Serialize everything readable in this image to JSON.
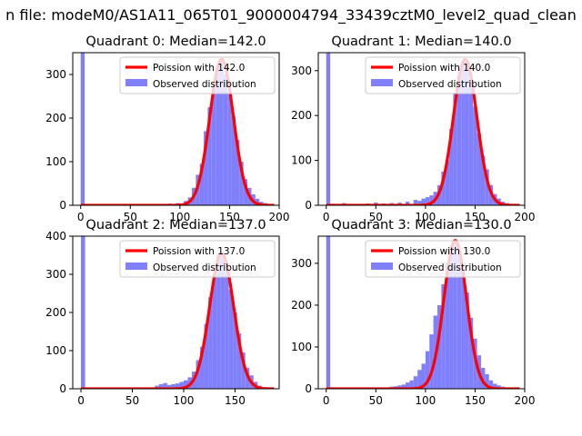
{
  "figure": {
    "suptitle": "n file: modeM0/AS1A11_065T01_9000004794_33439cztM0_level2_quad_clean"
  },
  "colors": {
    "poisson_line": "#ff0000",
    "observed_hist": "#8080ff",
    "axes": "#000000",
    "background": "#ffffff"
  },
  "chart_data": [
    {
      "type": "bar",
      "title": "Quadrant 0: Median=142.0",
      "xlim": [
        -8,
        200
      ],
      "ylim": [
        0,
        350
      ],
      "xticks": [
        0,
        50,
        100,
        150,
        200
      ],
      "yticks": [
        0,
        100,
        200,
        300
      ],
      "legend_position": "top-right",
      "bin_width": 4,
      "poisson": {
        "name": "Poission with 142.0",
        "mu": 142.0,
        "peak": 335
      },
      "observed": {
        "name": "Observed distribution",
        "bins": [
          [
            0,
            350
          ],
          [
            72,
            2
          ],
          [
            80,
            3
          ],
          [
            84,
            2
          ],
          [
            88,
            4
          ],
          [
            92,
            3
          ],
          [
            96,
            5
          ],
          [
            100,
            4
          ],
          [
            104,
            10
          ],
          [
            108,
            18
          ],
          [
            112,
            40
          ],
          [
            116,
            70
          ],
          [
            120,
            95
          ],
          [
            124,
            170
          ],
          [
            128,
            225
          ],
          [
            132,
            280
          ],
          [
            136,
            320
          ],
          [
            140,
            330
          ],
          [
            144,
            300
          ],
          [
            148,
            255
          ],
          [
            152,
            205
          ],
          [
            156,
            150
          ],
          [
            160,
            100
          ],
          [
            164,
            60
          ],
          [
            168,
            40
          ],
          [
            172,
            25
          ],
          [
            176,
            15
          ],
          [
            180,
            8
          ],
          [
            184,
            5
          ],
          [
            188,
            3
          ]
        ]
      }
    },
    {
      "type": "bar",
      "title": "Quadrant 1: Median=140.0",
      "xlim": [
        -8,
        200
      ],
      "ylim": [
        0,
        340
      ],
      "xticks": [
        0,
        50,
        100,
        150,
        200
      ],
      "yticks": [
        0,
        100,
        200,
        300
      ],
      "legend_position": "top-right",
      "bin_width": 4,
      "poisson": {
        "name": "Poission with 140.0",
        "mu": 140.0,
        "peak": 325
      },
      "observed": {
        "name": "Observed distribution",
        "bins": [
          [
            0,
            340
          ],
          [
            16,
            5
          ],
          [
            24,
            3
          ],
          [
            32,
            2
          ],
          [
            40,
            4
          ],
          [
            48,
            6
          ],
          [
            56,
            4
          ],
          [
            64,
            5
          ],
          [
            72,
            6
          ],
          [
            80,
            8
          ],
          [
            88,
            12
          ],
          [
            92,
            10
          ],
          [
            96,
            15
          ],
          [
            100,
            18
          ],
          [
            104,
            22
          ],
          [
            108,
            30
          ],
          [
            112,
            45
          ],
          [
            116,
            75
          ],
          [
            120,
            100
          ],
          [
            124,
            170
          ],
          [
            128,
            250
          ],
          [
            132,
            290
          ],
          [
            136,
            320
          ],
          [
            140,
            315
          ],
          [
            144,
            280
          ],
          [
            148,
            220
          ],
          [
            152,
            160
          ],
          [
            156,
            110
          ],
          [
            160,
            80
          ],
          [
            164,
            45
          ],
          [
            168,
            25
          ],
          [
            172,
            15
          ],
          [
            176,
            8
          ],
          [
            180,
            5
          ]
        ]
      }
    },
    {
      "type": "bar",
      "title": "Quadrant 2: Median=137.0",
      "xlim": [
        -8,
        193
      ],
      "ylim": [
        0,
        400
      ],
      "xticks": [
        0,
        50,
        100,
        150
      ],
      "yticks": [
        0,
        100,
        200,
        300,
        400
      ],
      "legend_position": "top-right",
      "bin_width": 4,
      "poisson": {
        "name": "Poission with 137.0",
        "mu": 137.0,
        "peak": 355
      },
      "observed": {
        "name": "Observed distribution",
        "bins": [
          [
            0,
            400
          ],
          [
            72,
            8
          ],
          [
            76,
            12
          ],
          [
            80,
            15
          ],
          [
            84,
            10
          ],
          [
            88,
            12
          ],
          [
            92,
            14
          ],
          [
            96,
            18
          ],
          [
            100,
            22
          ],
          [
            104,
            30
          ],
          [
            108,
            45
          ],
          [
            112,
            75
          ],
          [
            116,
            110
          ],
          [
            120,
            170
          ],
          [
            124,
            240
          ],
          [
            128,
            300
          ],
          [
            132,
            355
          ],
          [
            136,
            350
          ],
          [
            140,
            310
          ],
          [
            144,
            260
          ],
          [
            148,
            200
          ],
          [
            152,
            145
          ],
          [
            156,
            95
          ],
          [
            160,
            55
          ],
          [
            164,
            35
          ],
          [
            168,
            18
          ],
          [
            172,
            8
          ],
          [
            176,
            4
          ]
        ]
      }
    },
    {
      "type": "bar",
      "title": "Quadrant 3: Median=130.0",
      "xlim": [
        -8,
        200
      ],
      "ylim": [
        0,
        365
      ],
      "xticks": [
        0,
        50,
        100,
        150,
        200
      ],
      "yticks": [
        0,
        100,
        200,
        300
      ],
      "legend_position": "top-right",
      "bin_width": 4,
      "poisson": {
        "name": "Poission with 130.0",
        "mu": 130.0,
        "peak": 355
      },
      "observed": {
        "name": "Observed distribution",
        "bins": [
          [
            0,
            365
          ],
          [
            64,
            5
          ],
          [
            68,
            6
          ],
          [
            72,
            8
          ],
          [
            76,
            10
          ],
          [
            80,
            15
          ],
          [
            84,
            20
          ],
          [
            88,
            30
          ],
          [
            92,
            45
          ],
          [
            96,
            60
          ],
          [
            100,
            90
          ],
          [
            104,
            130
          ],
          [
            108,
            175
          ],
          [
            112,
            200
          ],
          [
            116,
            250
          ],
          [
            120,
            300
          ],
          [
            124,
            340
          ],
          [
            128,
            355
          ],
          [
            132,
            330
          ],
          [
            136,
            290
          ],
          [
            140,
            230
          ],
          [
            144,
            170
          ],
          [
            148,
            120
          ],
          [
            152,
            80
          ],
          [
            156,
            50
          ],
          [
            160,
            35
          ],
          [
            164,
            20
          ],
          [
            168,
            12
          ],
          [
            172,
            8
          ],
          [
            176,
            5
          ],
          [
            180,
            3
          ]
        ]
      }
    }
  ]
}
